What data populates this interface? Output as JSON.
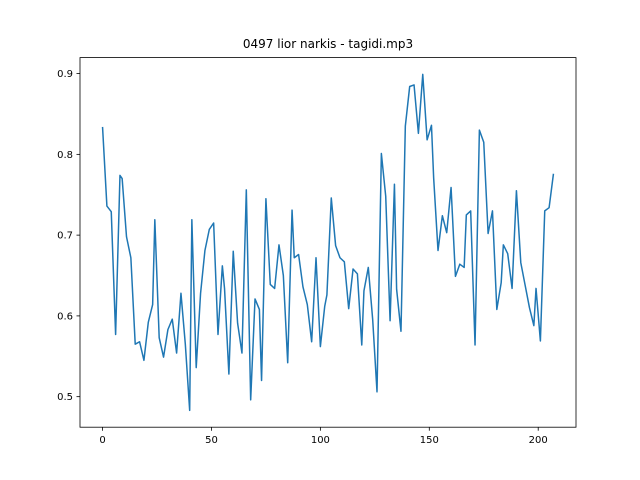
{
  "chart_data": {
    "type": "line",
    "title": "0497 lior narkis - tagidi.mp3",
    "x": [
      0,
      2,
      4,
      6,
      8,
      9,
      11,
      13,
      15,
      17,
      19,
      21,
      23,
      24,
      26,
      28,
      30,
      32,
      34,
      36,
      38,
      40,
      41,
      43,
      45,
      47,
      49,
      51,
      53,
      55,
      56,
      58,
      60,
      62,
      64,
      66,
      68,
      70,
      72,
      73,
      75,
      77,
      79,
      81,
      83,
      85,
      87,
      88,
      90,
      92,
      94,
      96,
      98,
      100,
      102,
      103,
      105,
      107,
      109,
      111,
      113,
      115,
      117,
      119,
      120,
      122,
      124,
      126,
      128,
      130,
      132,
      134,
      135,
      137,
      139,
      141,
      143,
      145,
      147,
      149,
      151,
      152,
      154,
      156,
      158,
      160,
      162,
      164,
      166,
      167,
      169,
      171,
      173,
      175,
      177,
      179,
      181,
      183,
      184,
      186,
      188,
      190,
      192,
      194,
      196,
      198,
      199,
      201,
      203,
      205,
      207
    ],
    "series": [
      {
        "color": "#1f77b4",
        "values": [
          0.834,
          0.736,
          0.729,
          0.577,
          0.774,
          0.77,
          0.698,
          0.672,
          0.565,
          0.568,
          0.545,
          0.592,
          0.614,
          0.719,
          0.573,
          0.549,
          0.583,
          0.596,
          0.554,
          0.628,
          0.565,
          0.483,
          0.719,
          0.536,
          0.628,
          0.681,
          0.707,
          0.715,
          0.577,
          0.662,
          0.634,
          0.528,
          0.68,
          0.591,
          0.554,
          0.756,
          0.496,
          0.621,
          0.608,
          0.52,
          0.745,
          0.639,
          0.634,
          0.688,
          0.65,
          0.542,
          0.731,
          0.672,
          0.676,
          0.636,
          0.614,
          0.568,
          0.672,
          0.562,
          0.612,
          0.626,
          0.746,
          0.687,
          0.672,
          0.667,
          0.609,
          0.658,
          0.652,
          0.564,
          0.631,
          0.66,
          0.596,
          0.506,
          0.801,
          0.748,
          0.594,
          0.763,
          0.633,
          0.581,
          0.835,
          0.884,
          0.886,
          0.826,
          0.899,
          0.818,
          0.836,
          0.771,
          0.681,
          0.724,
          0.703,
          0.759,
          0.649,
          0.664,
          0.66,
          0.725,
          0.73,
          0.564,
          0.83,
          0.815,
          0.702,
          0.73,
          0.608,
          0.641,
          0.688,
          0.677,
          0.634,
          0.755,
          0.666,
          0.638,
          0.61,
          0.588,
          0.634,
          0.569,
          0.73,
          0.734,
          0.776
        ]
      }
    ],
    "xlim": [
      -10.35,
      217.35
    ],
    "xticks": [
      0,
      50,
      100,
      150,
      200
    ],
    "ylim": [
      0.4622,
      0.9198
    ],
    "yticks": [
      0.5,
      0.6,
      0.7,
      0.8,
      0.9
    ]
  }
}
